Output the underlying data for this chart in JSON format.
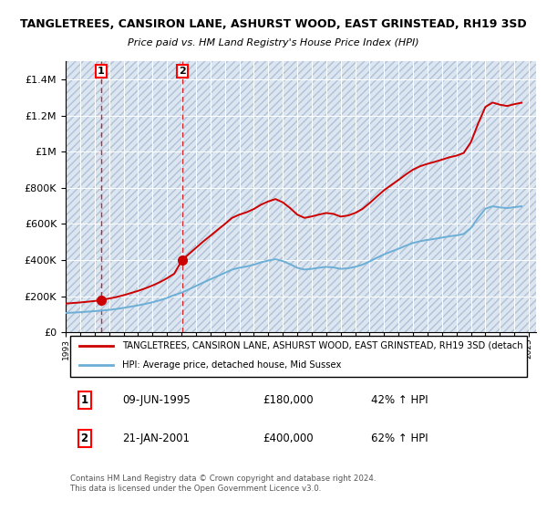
{
  "title": "TANGLETREES, CANSIRON LANE, ASHURST WOOD, EAST GRINSTEAD, RH19 3SD",
  "subtitle": "Price paid vs. HM Land Registry's House Price Index (HPI)",
  "sale1_date": "09-JUN-1995",
  "sale1_price": 180000,
  "sale1_hpi_pct": "42%",
  "sale2_date": "21-JAN-2001",
  "sale2_price": 400000,
  "sale2_hpi_pct": "62%",
  "legend_line1": "TANGLETREES, CANSIRON LANE, ASHURST WOOD, EAST GRINSTEAD, RH19 3SD (detach",
  "legend_line2": "HPI: Average price, detached house, Mid Sussex",
  "footer": "Contains HM Land Registry data © Crown copyright and database right 2024.\nThis data is licensed under the Open Government Licence v3.0.",
  "hpi_color": "#6baed6",
  "price_color": "#cc0000",
  "marker_color": "#cc0000",
  "dashed_line_color": "#cc0000",
  "ylim": [
    0,
    1500000
  ],
  "yticks": [
    0,
    200000,
    400000,
    600000,
    800000,
    1000000,
    1200000,
    1400000
  ],
  "ytick_labels": [
    "£0",
    "£200K",
    "£400K",
    "£600K",
    "£800K",
    "£1M",
    "£1.2M",
    "£1.4M"
  ],
  "sale1_x": 1995.46,
  "sale2_x": 2001.04,
  "hpi_years": [
    1993.0,
    1993.5,
    1994.0,
    1994.5,
    1995.0,
    1995.5,
    1996.0,
    1996.5,
    1997.0,
    1997.5,
    1998.0,
    1998.5,
    1999.0,
    1999.5,
    2000.0,
    2000.5,
    2001.0,
    2001.5,
    2002.0,
    2002.5,
    2003.0,
    2003.5,
    2004.0,
    2004.5,
    2005.0,
    2005.5,
    2006.0,
    2006.5,
    2007.0,
    2007.5,
    2008.0,
    2008.5,
    2009.0,
    2009.5,
    2010.0,
    2010.5,
    2011.0,
    2011.5,
    2012.0,
    2012.5,
    2013.0,
    2013.5,
    2014.0,
    2014.5,
    2015.0,
    2015.5,
    2016.0,
    2016.5,
    2017.0,
    2017.5,
    2018.0,
    2018.5,
    2019.0,
    2019.5,
    2020.0,
    2020.5,
    2021.0,
    2021.5,
    2022.0,
    2022.5,
    2023.0,
    2023.5,
    2024.0,
    2024.5
  ],
  "hpi_values": [
    108000,
    110000,
    112000,
    115000,
    118000,
    121000,
    125000,
    130000,
    136000,
    143000,
    150000,
    158000,
    167000,
    178000,
    191000,
    207000,
    220000,
    238000,
    257000,
    276000,
    294000,
    312000,
    330000,
    348000,
    358000,
    365000,
    375000,
    388000,
    398000,
    405000,
    395000,
    378000,
    358000,
    348000,
    352000,
    358000,
    363000,
    360000,
    352000,
    355000,
    363000,
    375000,
    393000,
    413000,
    432000,
    448000,
    463000,
    480000,
    495000,
    505000,
    512000,
    518000,
    525000,
    532000,
    537000,
    545000,
    578000,
    635000,
    685000,
    698000,
    692000,
    688000,
    693000,
    698000
  ],
  "red_years": [
    1993.0,
    1993.5,
    1994.0,
    1994.5,
    1995.0,
    1995.46,
    1996.0,
    1996.5,
    1997.0,
    1997.5,
    1998.0,
    1998.5,
    1999.0,
    1999.5,
    2000.0,
    2000.5,
    2001.04,
    2001.5,
    2002.0,
    2002.5,
    2003.0,
    2003.5,
    2004.0,
    2004.5,
    2005.0,
    2005.5,
    2006.0,
    2006.5,
    2007.0,
    2007.5,
    2008.0,
    2008.5,
    2009.0,
    2009.5,
    2010.0,
    2010.5,
    2011.0,
    2011.5,
    2012.0,
    2012.5,
    2013.0,
    2013.5,
    2014.0,
    2014.5,
    2015.0,
    2015.5,
    2016.0,
    2016.5,
    2017.0,
    2017.5,
    2018.0,
    2018.5,
    2019.0,
    2019.5,
    2020.0,
    2020.5,
    2021.0,
    2021.5,
    2022.0,
    2022.5,
    2023.0,
    2023.5,
    2024.0,
    2024.5
  ],
  "red_values": [
    160000,
    163000,
    166000,
    170000,
    174000,
    180000,
    188000,
    196000,
    206000,
    218000,
    230000,
    244000,
    260000,
    278000,
    300000,
    325000,
    400000,
    433000,
    468000,
    503000,
    535000,
    568000,
    600000,
    634000,
    652000,
    665000,
    683000,
    707000,
    725000,
    738000,
    720000,
    689000,
    652000,
    634000,
    642000,
    652000,
    661000,
    656000,
    641000,
    647000,
    661000,
    683000,
    716000,
    752000,
    787000,
    816000,
    844000,
    874000,
    901000,
    920000,
    933000,
    944000,
    956000,
    969000,
    978000,
    993000,
    1053000,
    1156000,
    1248000,
    1272000,
    1260000,
    1253000,
    1263000,
    1271000
  ]
}
